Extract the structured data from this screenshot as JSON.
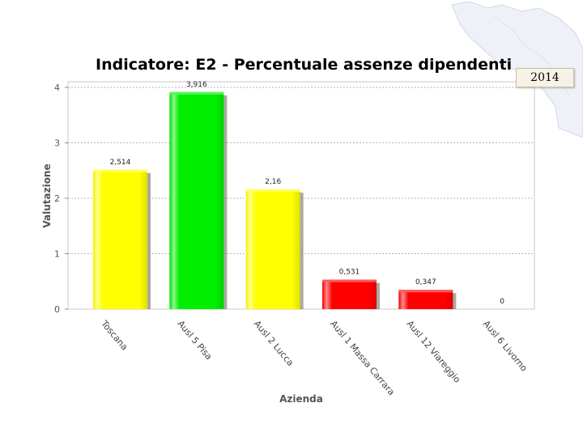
{
  "chart_data": {
    "type": "bar",
    "title": "Indicatore: E2 - Percentuale assenze dipendenti",
    "xlabel": "Azienda",
    "ylabel": "Valutazione",
    "categories": [
      "Toscana",
      "Ausl 5 Pisa",
      "Ausl 2 Lucca",
      "Ausl 1 Massa Carrara",
      "Ausl 12 Viareggio",
      "Ausl 6 Livorno"
    ],
    "values": [
      2.514,
      3.916,
      2.16,
      0.531,
      0.347,
      0
    ],
    "value_labels": [
      "2,514",
      "3,916",
      "2,16",
      "0,531",
      "0,347",
      "0"
    ],
    "bar_colors": [
      "#ffff00",
      "#00ee00",
      "#ffff00",
      "#ff0000",
      "#ff0000",
      "#ff0000"
    ],
    "yticks": [
      "0",
      "1",
      "2",
      "3",
      "4"
    ],
    "ylim": [
      0,
      4.1
    ],
    "grid": "horizontal dashed",
    "legend": "none"
  },
  "badge": {
    "year": "2014"
  }
}
